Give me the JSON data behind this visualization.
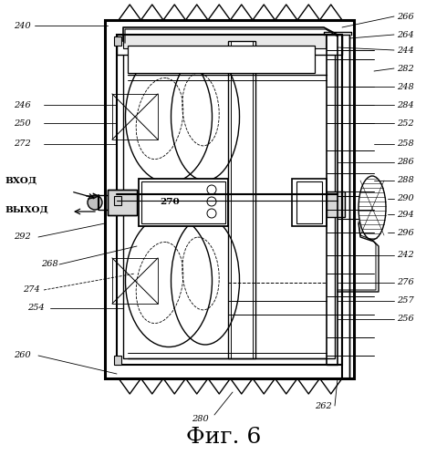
{
  "fig_label": "Фиг. 6",
  "bg_color": "#ffffff",
  "line_color": "#000000"
}
